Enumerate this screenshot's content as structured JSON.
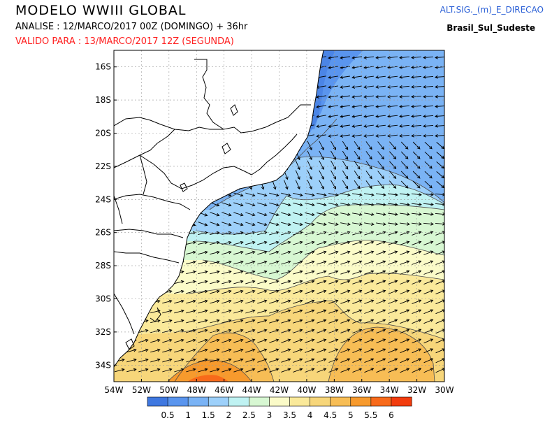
{
  "header": {
    "title": "MODELO WWIII GLOBAL",
    "analise": "ANALISE : 12/MARCO/2017 00Z  (DOMINGO) + 36hr",
    "valido": "VALIDO PARA : 13/MARCO/2017 12Z  (SEGUNDA)",
    "variable": "ALT.SIG._(m)_E_DIRECAO",
    "region": "Brasil_Sul_Sudeste"
  },
  "map": {
    "lat_labels": [
      "16S",
      "18S",
      "20S",
      "22S",
      "24S",
      "26S",
      "28S",
      "30S",
      "32S",
      "34S"
    ],
    "lon_labels": [
      "54W",
      "52W",
      "50W",
      "48W",
      "46W",
      "44W",
      "42W",
      "40W",
      "38W",
      "36W",
      "34W",
      "32W",
      "30W"
    ],
    "lon_range": [
      -54,
      -30
    ],
    "lat_range": [
      -35,
      -15
    ]
  },
  "colorbar": {
    "labels": [
      "0.5",
      "1",
      "1.5",
      "2",
      "2.5",
      "3",
      "3.5",
      "4",
      "4.5",
      "5",
      "5.5",
      "6"
    ],
    "colors": [
      "#3f78e0",
      "#5a95ee",
      "#7ab3f5",
      "#9dd0fa",
      "#bff2f2",
      "#d7f7d2",
      "#fbfbc8",
      "#fae99a",
      "#f7d67a",
      "#f7bd55",
      "#f79a2d",
      "#f86a1a",
      "#f23c0e"
    ]
  }
}
